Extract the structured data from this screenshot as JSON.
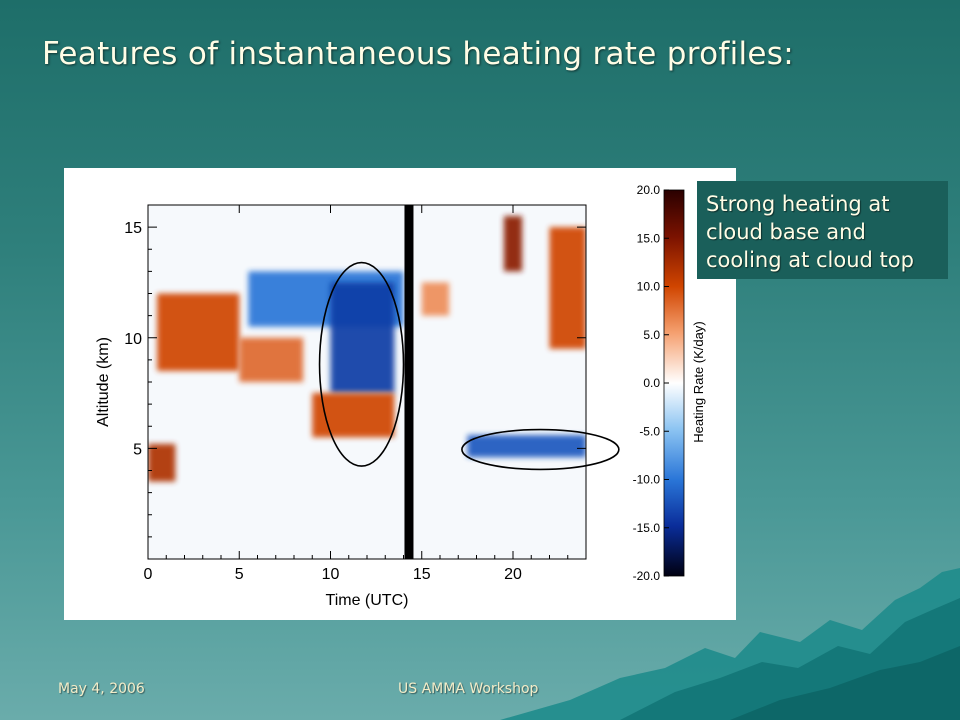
{
  "slide": {
    "title": "Features of instantaneous heating rate profiles:",
    "callout": [
      "Strong heating at",
      "cloud base and",
      "cooling at cloud top"
    ],
    "footer_date": "May 4, 2006",
    "footer_event": "US AMMA Workshop"
  },
  "colors": {
    "background_top": "#1e6e69",
    "background_bottom": "#6aacab",
    "callout_bg": "#1a5f5a",
    "title_text": "#fffde6"
  },
  "chart_data": {
    "type": "heatmap",
    "xlabel": "Time (UTC)",
    "ylabel": "Altitude (km)",
    "xlim": [
      0,
      24
    ],
    "ylim": [
      0,
      16
    ],
    "xticks": [
      0,
      5,
      10,
      15,
      20
    ],
    "yticks": [
      5,
      10,
      15
    ],
    "colorbar": {
      "label": "Heating Rate (K/day)",
      "range": [
        -20,
        20
      ],
      "ticks": [
        "20.0",
        "15.0",
        "10.0",
        "5.0",
        "0.0",
        "-5.0",
        "-10.0",
        "-15.0",
        "-20.0"
      ]
    },
    "data_gap_time": 14.3,
    "features": [
      {
        "name": "upper-heating-band",
        "t0": 0.5,
        "t1": 5.0,
        "z_top": 12.0,
        "z_bottom": 8.5,
        "rate": 10
      },
      {
        "name": "mid-heating-band",
        "t0": 5.0,
        "t1": 8.5,
        "z_top": 10.0,
        "z_bottom": 8.0,
        "rate": 8
      },
      {
        "name": "upper-cooling-region",
        "t0": 5.5,
        "t1": 14.0,
        "z_top": 13.0,
        "z_bottom": 10.5,
        "rate": -10
      },
      {
        "name": "deep-cooling-core",
        "t0": 10.0,
        "t1": 13.5,
        "z_top": 12.5,
        "z_bottom": 7.5,
        "rate": -14
      },
      {
        "name": "cloud-base-heating",
        "t0": 9.0,
        "t1": 13.5,
        "z_top": 7.5,
        "z_bottom": 5.5,
        "rate": 10
      },
      {
        "name": "low-cloud-base-heating",
        "t0": 0.0,
        "t1": 1.5,
        "z_top": 5.2,
        "z_bottom": 3.5,
        "rate": 12
      },
      {
        "name": "afternoon-heating-patch",
        "t0": 15.0,
        "t1": 16.5,
        "z_top": 12.5,
        "z_bottom": 11.0,
        "rate": 6
      },
      {
        "name": "evening-cirrus-heating",
        "t0": 19.5,
        "t1": 20.5,
        "z_top": 15.5,
        "z_bottom": 13.0,
        "rate": 14
      },
      {
        "name": "late-cirrus-heating",
        "t0": 22.0,
        "t1": 24.0,
        "z_top": 15.0,
        "z_bottom": 9.5,
        "rate": 10
      },
      {
        "name": "low-cloud-layer",
        "t0": 17.5,
        "t1": 24.0,
        "z_top": 5.6,
        "z_bottom": 4.6,
        "rate": -12
      }
    ],
    "annotations": [
      {
        "type": "ellipse",
        "t_center": 11.7,
        "z_center": 8.8,
        "t_radius": 2.3,
        "z_radius": 4.6
      },
      {
        "type": "ellipse",
        "t_center": 21.5,
        "z_center": 4.95,
        "t_radius": 4.3,
        "z_radius": 0.9
      }
    ]
  }
}
